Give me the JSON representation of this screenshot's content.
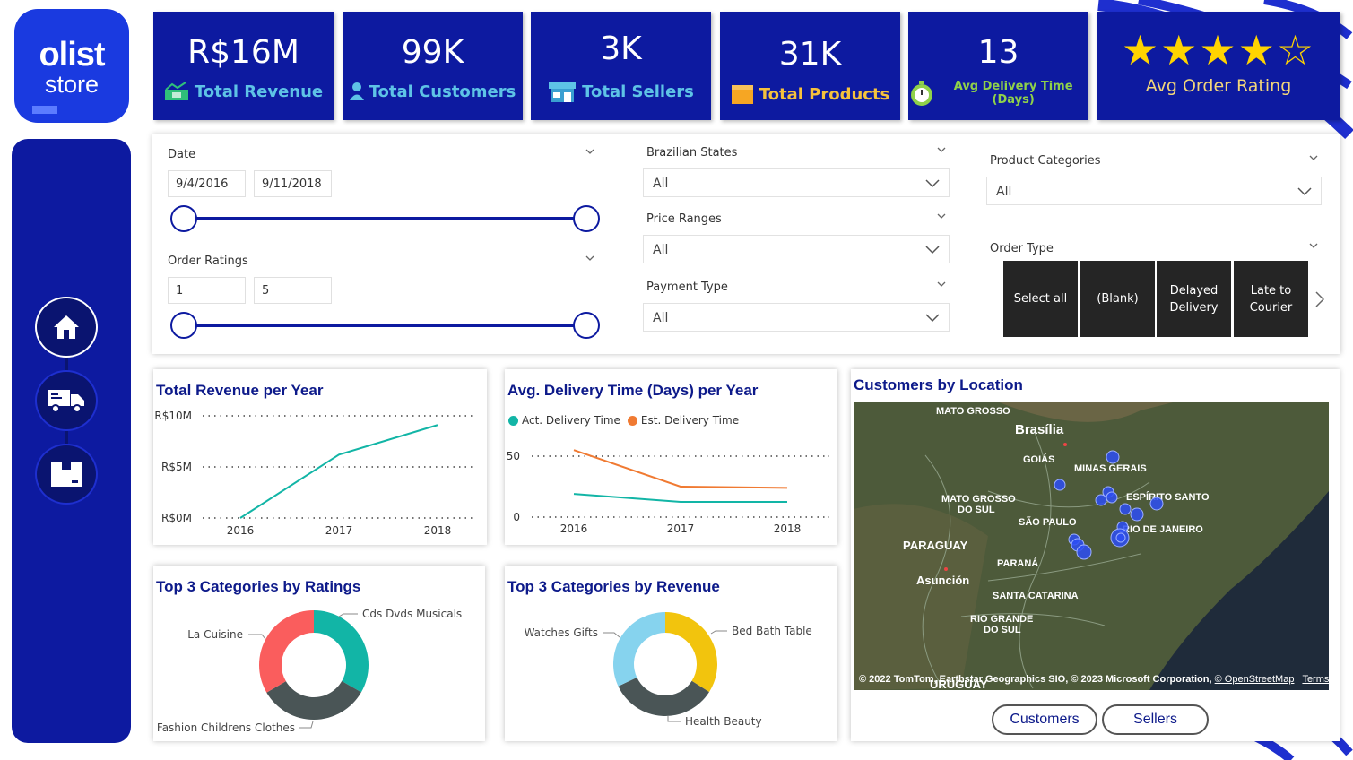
{
  "brand": {
    "name": "olist",
    "sub": "store"
  },
  "kpis": [
    {
      "value": "R$16M",
      "label": "Total Revenue",
      "icon": "money-icon"
    },
    {
      "value": "99K",
      "label": "Total Customers",
      "icon": "person-icon"
    },
    {
      "value": "3K",
      "label": "Total Sellers",
      "icon": "store-icon"
    },
    {
      "value": "31K",
      "label": "Total Products",
      "icon": "box-icon"
    },
    {
      "value": "13",
      "label": "Avg Delivery Time (Days)",
      "icon": "stopwatch-icon"
    },
    {
      "stars": "★★★★☆",
      "rating": 4,
      "label": "Avg Order Rating"
    }
  ],
  "nav": [
    {
      "icon": "home-icon"
    },
    {
      "icon": "truck-icon"
    },
    {
      "icon": "package-icon"
    }
  ],
  "filters": {
    "date": {
      "label": "Date",
      "start": "9/4/2016",
      "end": "9/11/2018"
    },
    "ratings": {
      "label": "Order Ratings",
      "min": "1",
      "max": "5"
    },
    "states": {
      "label": "Brazilian States",
      "value": "All"
    },
    "price": {
      "label": "Price Ranges",
      "value": "All"
    },
    "payment": {
      "label": "Payment Type",
      "value": "All"
    },
    "categories": {
      "label": "Product Categories",
      "value": "All"
    },
    "order_type": {
      "label": "Order Type",
      "options": [
        "Select all",
        "(Blank)",
        "Delayed Delivery",
        "Late to Courier"
      ]
    }
  },
  "colors": {
    "navy": "#0d1aa0",
    "teal": "#12b5a6",
    "orange": "#f07a32",
    "coral": "#fa5d5d",
    "slate": "#4a5556",
    "sky": "#86d3ee",
    "gold": "#f2c40d"
  },
  "revenue_chart": {
    "title": "Total Revenue per Year"
  },
  "delivery_chart": {
    "title": "Avg. Delivery Time (Days) per Year",
    "legend": [
      "Act. Delivery Time",
      "Est. Delivery Time"
    ]
  },
  "ratings_chart": {
    "title": "Top 3 Categories by Ratings"
  },
  "revenue_cat_chart": {
    "title": "Top 3 Categories by Revenue"
  },
  "chart_data": [
    {
      "type": "line",
      "title": "Total Revenue per Year",
      "x": [
        "2016",
        "2017",
        "2018"
      ],
      "series": [
        {
          "values": [
            0,
            6.2,
            9.1
          ]
        }
      ],
      "y_ticks": [
        "R$0M",
        "R$5M",
        "R$10M"
      ],
      "ylim": [
        0,
        10
      ],
      "grid": true
    },
    {
      "type": "line",
      "title": "Avg. Delivery Time (Days) per Year",
      "x": [
        "2016",
        "2017",
        "2018"
      ],
      "series": [
        {
          "name": "Act. Delivery Time",
          "values": [
            19,
            12.5,
            12.5
          ]
        },
        {
          "name": "Est. Delivery Time",
          "values": [
            55,
            25,
            24
          ]
        }
      ],
      "y_ticks": [
        "0",
        "50"
      ],
      "ylim": [
        0,
        60
      ],
      "grid": true,
      "legend": "top-left"
    },
    {
      "type": "pie",
      "title": "Top 3 Categories by Ratings",
      "labels": [
        "Cds Dvds Musicals",
        "Fashion Childrens Clothes",
        "La Cuisine"
      ],
      "values": [
        33.3,
        33.3,
        33.4
      ]
    },
    {
      "type": "pie",
      "title": "Top 3 Categories by Revenue",
      "labels": [
        "Bed Bath Table",
        "Health Beauty",
        "Watches Gifts"
      ],
      "values": [
        34,
        34,
        32
      ]
    }
  ],
  "map": {
    "title": "Customers by Location",
    "labels": [
      "MATO GROSSO",
      "Brasília",
      "GOIÁS",
      "MINAS GERAIS",
      "ESPÍRITO SANTO",
      "MATO GROSSO DO SUL",
      "SÃO PAULO",
      "PARAGUAY",
      "RIO DE JANEIRO",
      "PARANÁ",
      "Asunción",
      "SANTA CATARINA",
      "RIO GRANDE DO SUL",
      "URUGUAY"
    ],
    "attribution": "© 2022 TomTom, Earthstar Geographics SIO, © 2023 Microsoft Corporation,",
    "osm": "© OpenStreetMap",
    "terms": "Terms",
    "toggles": [
      "Customers",
      "Sellers"
    ]
  }
}
